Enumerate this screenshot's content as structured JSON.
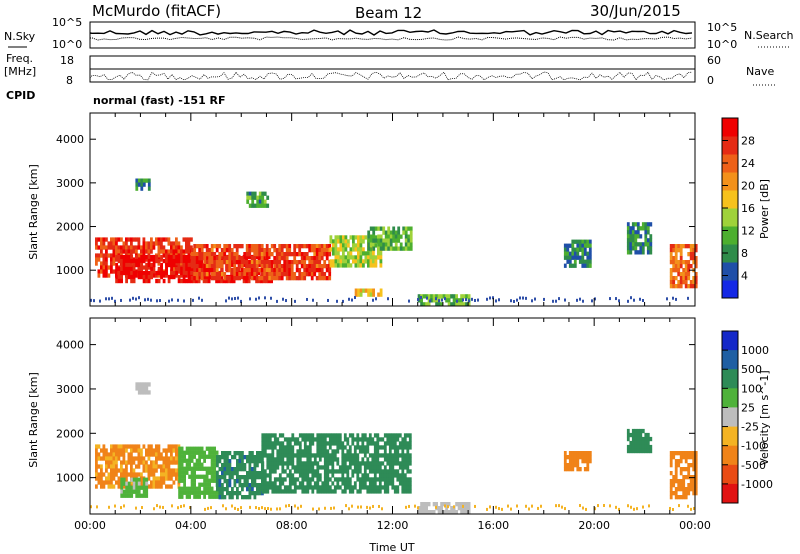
{
  "header": {
    "station": "McMurdo (fitACF)",
    "beam": "Beam 12",
    "date": "30/Jun/2015"
  },
  "top_panels": {
    "nsky_label": "N.Sky",
    "nsearch_label": "N.Search",
    "count_ticks_left": [
      "10^5",
      "10^0"
    ],
    "count_ticks_right": [
      "10^5",
      "10^0"
    ],
    "freq_label": "Freq.",
    "freq_unit": "[MHz]",
    "freq_ticks": [
      "18",
      "8"
    ],
    "nave_label": "Nave",
    "nave_ticks": [
      "60",
      "0"
    ],
    "cpid_label": "CPID",
    "cpid_text": "normal (fast) -151 RF"
  },
  "chart_data": [
    {
      "type": "heatmap",
      "name": "power",
      "ylabel": "Slant Range [km]",
      "xlabel": "",
      "xlim": [
        0,
        24
      ],
      "ylim": [
        180,
        4600
      ],
      "y_ticks": [
        "1000",
        "2000",
        "3000",
        "4000"
      ],
      "colorbar": {
        "label": "Power [dB]",
        "ticks": [
          "4",
          "8",
          "12",
          "16",
          "20",
          "24",
          "28"
        ],
        "range": [
          0,
          32
        ],
        "colors": [
          "#1428e6",
          "#1f4fa8",
          "#2f8c4a",
          "#4daf2f",
          "#9fd23a",
          "#f6c21d",
          "#f3911b",
          "#ee6118",
          "#e52b14",
          "#ef0000"
        ]
      },
      "regions": [
        {
          "t0": 0.2,
          "t1": 4.0,
          "r0": 850,
          "r1": 1750,
          "v": 27
        },
        {
          "t0": 1.0,
          "t1": 7.2,
          "r0": 750,
          "r1": 1350,
          "v": 30
        },
        {
          "t0": 4.0,
          "t1": 9.5,
          "r0": 800,
          "r1": 1600,
          "v": 26
        },
        {
          "t0": 9.5,
          "t1": 11.5,
          "r0": 1100,
          "r1": 1800,
          "v": 15
        },
        {
          "t0": 11.0,
          "t1": 12.7,
          "r0": 1500,
          "r1": 2000,
          "v": 12
        },
        {
          "t0": 1.8,
          "t1": 2.3,
          "r0": 2850,
          "r1": 3100,
          "v": 8
        },
        {
          "t0": 6.2,
          "t1": 7.0,
          "r0": 2500,
          "r1": 2800,
          "v": 10
        },
        {
          "t0": 10.5,
          "t1": 11.5,
          "r0": 450,
          "r1": 580,
          "v": 18
        },
        {
          "t0": 13.0,
          "t1": 15.0,
          "r0": 220,
          "r1": 450,
          "v": 12
        },
        {
          "t0": 18.8,
          "t1": 19.8,
          "r0": 1100,
          "r1": 1700,
          "v": 8
        },
        {
          "t0": 21.3,
          "t1": 22.2,
          "r0": 1400,
          "r1": 2100,
          "v": 8
        },
        {
          "t0": 23.0,
          "t1": 24.0,
          "r0": 600,
          "r1": 1600,
          "v": 24
        }
      ]
    },
    {
      "type": "heatmap",
      "name": "velocity",
      "ylabel": "Slant Range [km]",
      "xlabel": "Time UT",
      "xlim": [
        0,
        24
      ],
      "ylim": [
        180,
        4600
      ],
      "x_ticks": [
        "00:00",
        "04:00",
        "08:00",
        "12:00",
        "16:00",
        "20:00",
        "00:00"
      ],
      "y_ticks": [
        "1000",
        "2000",
        "3000",
        "4000"
      ],
      "colorbar": {
        "label": "Velocity [m s^-1]",
        "ticks": [
          "1000",
          "500",
          "100",
          "25",
          "-25",
          "-100",
          "-500",
          "-1000"
        ],
        "colors": [
          "#1428c8",
          "#1f5fa3",
          "#2e8b57",
          "#4fb23a",
          "#bdbdbd",
          "#f4b323",
          "#f08318",
          "#e94b14",
          "#e11212"
        ]
      },
      "regions": [
        {
          "t0": 0.2,
          "t1": 3.5,
          "r0": 800,
          "r1": 1750,
          "v": -120
        },
        {
          "t0": 3.5,
          "t1": 5.0,
          "r0": 600,
          "r1": 1700,
          "v": 60
        },
        {
          "t0": 5.0,
          "t1": 6.8,
          "r0": 550,
          "r1": 1600,
          "v": 400
        },
        {
          "t0": 6.8,
          "t1": 12.7,
          "r0": 700,
          "r1": 2000,
          "v": 150
        },
        {
          "t0": 1.2,
          "t1": 2.2,
          "r0": 600,
          "r1": 1000,
          "v": 30
        },
        {
          "t0": 1.8,
          "t1": 2.3,
          "r0": 2900,
          "r1": 3150,
          "v": 0
        },
        {
          "t0": 13.0,
          "t1": 15.0,
          "r0": 220,
          "r1": 450,
          "v": 0
        },
        {
          "t0": 18.8,
          "t1": 19.8,
          "r0": 1200,
          "r1": 1600,
          "v": -300
        },
        {
          "t0": 21.3,
          "t1": 22.2,
          "r0": 1600,
          "r1": 2100,
          "v": 150
        },
        {
          "t0": 23.0,
          "t1": 24.0,
          "r0": 600,
          "r1": 1600,
          "v": -200
        }
      ]
    }
  ]
}
